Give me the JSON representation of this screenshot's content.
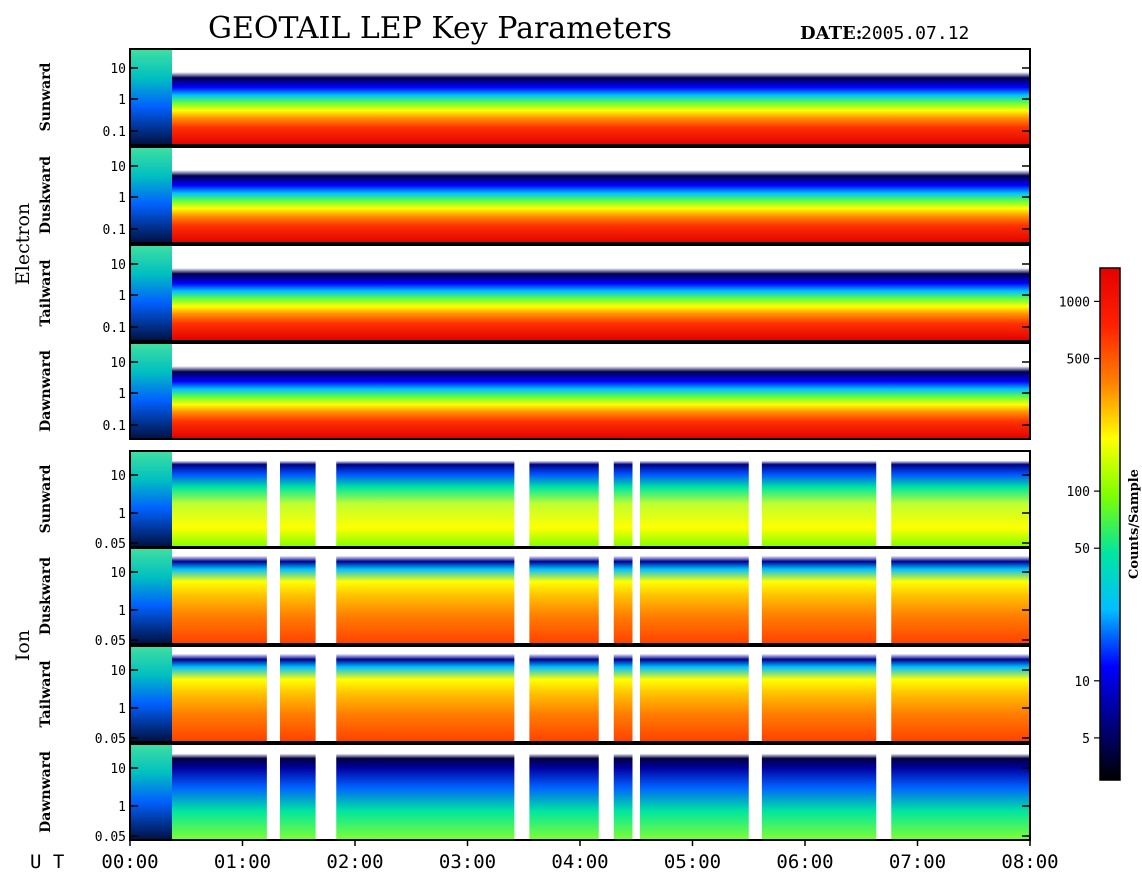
{
  "chart_data": {
    "type": "heatmap",
    "title": "GEOTAIL LEP Key Parameters",
    "date_label": "DATE:",
    "date": "2005.07.12",
    "x_axis": {
      "label": "U T",
      "ticks": [
        "00:00",
        "01:00",
        "02:00",
        "03:00",
        "04:00",
        "05:00",
        "06:00",
        "07:00",
        "08:00"
      ],
      "range": [
        "00:00",
        "08:00"
      ]
    },
    "groups": [
      {
        "name": "Electron",
        "y_ticks": [
          "10",
          "1",
          "0.1"
        ],
        "panels": [
          {
            "label": "Sunward"
          },
          {
            "label": "Duskward"
          },
          {
            "label": "Tailward"
          },
          {
            "label": "Dawnward"
          }
        ]
      },
      {
        "name": "Ion",
        "y_ticks": [
          "10",
          "1",
          "0.05"
        ],
        "panels": [
          {
            "label": "Sunward"
          },
          {
            "label": "Duskward"
          },
          {
            "label": "Tailward"
          },
          {
            "label": "Dawnward"
          }
        ]
      }
    ],
    "colorbar": {
      "label": "Counts/Sample",
      "scale": "log",
      "ticks": [
        "1000",
        "500",
        "100",
        "50",
        "10",
        "5"
      ],
      "range": [
        3,
        1500
      ],
      "colormap": [
        "#000000",
        "#000080",
        "#0000ff",
        "#00bfff",
        "#00e6a0",
        "#7fff00",
        "#ffff00",
        "#ff8000",
        "#ff2000",
        "#e60000"
      ]
    },
    "data_gaps_ion": [
      "~01:13-01:20",
      "~01:39-01:50",
      "~03:25-03:33",
      "~04:10-04:18",
      "~04:28-04:32",
      "~05:30-05:37",
      "~06:38-06:46"
    ]
  }
}
